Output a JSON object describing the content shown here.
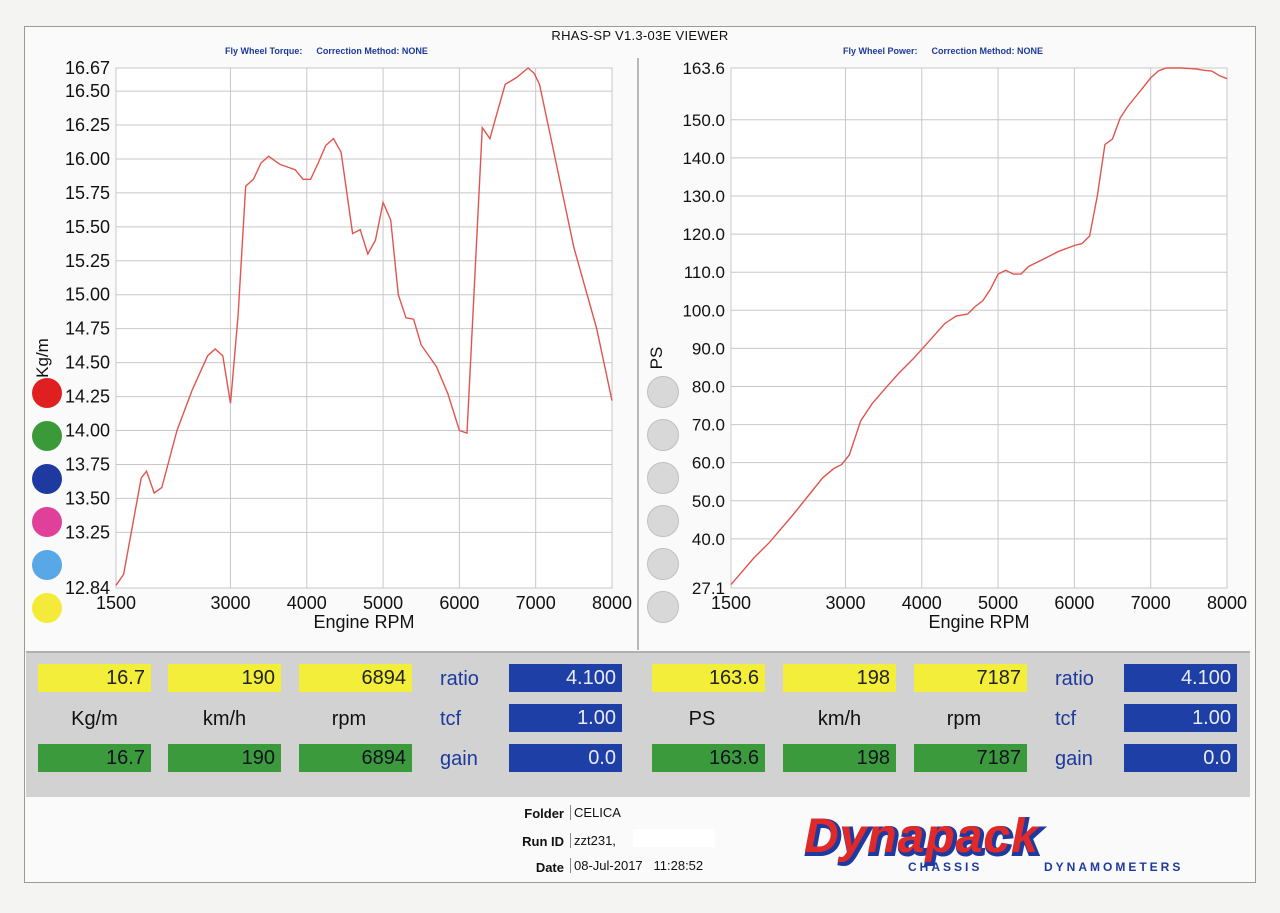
{
  "viewer_title": "RHAS-SP V1.3-03E VIEWER",
  "left_header": {
    "label": "Fly Wheel Torque:",
    "correction": "Correction Method: NONE"
  },
  "right_header": {
    "label": "Fly Wheel Power:",
    "correction": "Correction Method: NONE"
  },
  "chart_data": [
    {
      "type": "line",
      "ylabel": "Kg/m",
      "xlabel": "Engine RPM",
      "xlim": [
        1500,
        8000
      ],
      "ylim": [
        12.84,
        16.67
      ],
      "x_ticks": [
        "1500",
        "3000",
        "4000",
        "5000",
        "6000",
        "7000",
        "8000"
      ],
      "y_ticks": [
        "16.67",
        "16.50",
        "16.25",
        "16.00",
        "15.75",
        "15.50",
        "15.25",
        "15.00",
        "14.75",
        "14.50",
        "14.25",
        "14.00",
        "13.75",
        "13.50",
        "13.25",
        "12.84"
      ],
      "grid": true,
      "color": "#e0554e",
      "series": [
        {
          "x": [
            1500,
            1600,
            1830,
            1900,
            2000,
            2100,
            2300,
            2500,
            2700,
            2800,
            2900,
            3000,
            3100,
            3200,
            3300,
            3400,
            3500,
            3650,
            3850,
            3950,
            4050,
            4150,
            4250,
            4350,
            4450,
            4600,
            4700,
            4800,
            4900,
            5000,
            5100,
            5200,
            5300,
            5400,
            5500,
            5700,
            5850,
            6000,
            6100,
            6200,
            6300,
            6400,
            6500,
            6600,
            6750,
            6900,
            6980,
            7050,
            7200,
            7500,
            7800,
            8000
          ],
          "y": [
            12.86,
            12.94,
            13.65,
            13.7,
            13.54,
            13.58,
            14.0,
            14.3,
            14.55,
            14.6,
            14.55,
            14.2,
            14.85,
            15.8,
            15.85,
            15.97,
            16.02,
            15.96,
            15.92,
            15.85,
            15.85,
            15.97,
            16.1,
            16.15,
            16.05,
            15.45,
            15.48,
            15.3,
            15.4,
            15.68,
            15.55,
            15.0,
            14.83,
            14.82,
            14.63,
            14.47,
            14.27,
            14.0,
            13.98,
            15.1,
            16.23,
            16.15,
            16.35,
            16.55,
            16.6,
            16.67,
            16.63,
            16.55,
            16.15,
            15.35,
            14.75,
            14.22
          ]
        }
      ]
    },
    {
      "type": "line",
      "ylabel": "PS",
      "xlabel": "Engine RPM",
      "xlim": [
        1500,
        8000
      ],
      "ylim": [
        27.1,
        163.6
      ],
      "x_ticks": [
        "1500",
        "3000",
        "4000",
        "5000",
        "6000",
        "7000",
        "8000"
      ],
      "y_ticks": [
        "163.6",
        "150.0",
        "140.0",
        "130.0",
        "120.0",
        "110.0",
        "100.0",
        "90.0",
        "80.0",
        "70.0",
        "60.0",
        "50.0",
        "40.0",
        "27.1"
      ],
      "grid": true,
      "color": "#e0554e",
      "series": [
        {
          "x": [
            1500,
            1800,
            2000,
            2300,
            2500,
            2700,
            2850,
            2950,
            3050,
            3100,
            3200,
            3350,
            3500,
            3700,
            3900,
            4100,
            4300,
            4450,
            4600,
            4700,
            4800,
            4900,
            5000,
            5100,
            5200,
            5300,
            5400,
            5600,
            5800,
            6000,
            6100,
            6200,
            6300,
            6400,
            6500,
            6600,
            6700,
            6800,
            6900,
            7000,
            7100,
            7200,
            7300,
            7400,
            7500,
            7600,
            7700,
            7800,
            7900,
            8000
          ],
          "y": [
            28.0,
            35.0,
            39.0,
            46.0,
            51.0,
            56.0,
            58.5,
            59.5,
            62.0,
            65.0,
            71.0,
            75.5,
            79.0,
            83.5,
            87.5,
            92.0,
            96.5,
            98.5,
            99.0,
            101.0,
            102.5,
            105.5,
            109.5,
            110.5,
            109.5,
            109.5,
            111.5,
            113.5,
            115.5,
            117.0,
            117.5,
            119.5,
            130.0,
            143.5,
            145.0,
            150.5,
            153.5,
            156.0,
            158.5,
            161.0,
            162.8,
            163.6,
            163.6,
            163.6,
            163.5,
            163.3,
            163.0,
            162.8,
            161.6,
            160.8
          ]
        }
      ]
    }
  ],
  "left_readout": {
    "max_torque": "16.7",
    "max_speed": "190",
    "max_rpm": "6894",
    "unit_torque": "Kg/m",
    "unit_speed": "km/h",
    "unit_rpm": "rpm",
    "cur_torque": "16.7",
    "cur_speed": "190",
    "cur_rpm": "6894",
    "ratio_label": "ratio",
    "tcf_label": "tcf",
    "gain_label": "gain",
    "ratio": "4.100",
    "tcf": "1.00",
    "gain": "0.0"
  },
  "right_readout": {
    "max_power": "163.6",
    "max_speed": "198",
    "max_rpm": "7187",
    "unit_power": "PS",
    "unit_speed": "km/h",
    "unit_rpm": "rpm",
    "cur_power": "163.6",
    "cur_speed": "198",
    "cur_rpm": "7187",
    "ratio_label": "ratio",
    "tcf_label": "tcf",
    "gain_label": "gain",
    "ratio": "4.100",
    "tcf": "1.00",
    "gain": "0.0"
  },
  "footer": {
    "folder_label": "Folder",
    "folder": "CELICA",
    "runid_label": "Run ID",
    "runid": "zzt231,",
    "date_label": "Date",
    "date": "08-Jul-2017",
    "time": "11:28:52"
  },
  "brand": {
    "name": "Dynapack",
    "tagline_left": "CHASSIS",
    "tagline_right": "DYNAMOMETERS"
  },
  "colors": {
    "curve": "#e0554e",
    "dots_left": [
      "#e02020",
      "#3a9a3a",
      "#1e3aa0",
      "#e0409a",
      "#58a8e8",
      "#f4ea3a"
    ],
    "dot_right": "#d8d8d8"
  }
}
